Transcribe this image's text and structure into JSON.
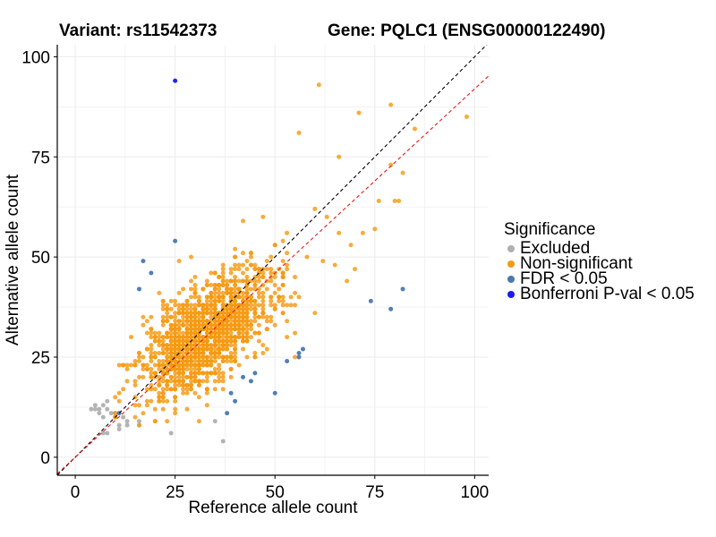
{
  "chart_data": {
    "type": "scatter",
    "title_left": "Variant: rs11542373",
    "title_right": "Gene: PQLC1 (ENSG00000122490)",
    "xlabel": "Reference allele count",
    "ylabel": "Alternative allele count",
    "xlim": [
      -4.5,
      103.5
    ],
    "ylim": [
      -4.5,
      103
    ],
    "x_ticks": [
      0,
      25,
      50,
      75,
      100
    ],
    "y_ticks": [
      0,
      25,
      50,
      75,
      100
    ],
    "grid": true,
    "legend_position": "right",
    "legend_title": "Significance",
    "reference_lines": [
      {
        "name": "identity",
        "color": "#000000",
        "dash": "dashed",
        "slope": 1.0,
        "intercept": 0
      },
      {
        "name": "fit",
        "color": "#e41a1c",
        "dash": "dashed",
        "slope": 0.92,
        "intercept": 0
      }
    ],
    "series": [
      {
        "name": "Excluded",
        "color": "#b0b0b0",
        "points": [
          [
            4,
            12
          ],
          [
            5,
            12
          ],
          [
            5,
            13
          ],
          [
            6,
            12
          ],
          [
            6,
            11
          ],
          [
            7,
            13
          ],
          [
            7,
            10
          ],
          [
            8,
            12
          ],
          [
            8,
            14
          ],
          [
            9,
            11
          ],
          [
            10,
            10
          ],
          [
            10,
            11
          ],
          [
            11,
            8
          ],
          [
            11,
            7
          ],
          [
            7,
            6
          ],
          [
            8,
            6
          ],
          [
            13,
            8
          ],
          [
            13,
            9
          ],
          [
            16,
            8
          ],
          [
            16,
            9
          ],
          [
            24,
            6
          ],
          [
            35,
            9
          ],
          [
            37,
            4
          ],
          [
            12,
            10
          ]
        ]
      },
      {
        "name": "Non-significant",
        "color": "#f59a14",
        "points": []
      },
      {
        "name": "FDR < 0.05",
        "color": "#4a78b0",
        "points": [
          [
            11,
            11
          ],
          [
            16,
            42
          ],
          [
            17,
            49
          ],
          [
            19,
            46
          ],
          [
            25,
            54
          ],
          [
            38,
            11
          ],
          [
            40,
            14
          ],
          [
            39,
            16
          ],
          [
            42,
            20
          ],
          [
            44,
            19
          ],
          [
            45,
            21
          ],
          [
            50,
            16
          ],
          [
            53,
            24
          ],
          [
            56,
            26
          ],
          [
            56,
            25
          ],
          [
            57,
            27
          ],
          [
            74,
            39
          ],
          [
            79,
            37
          ],
          [
            82,
            42
          ]
        ]
      },
      {
        "name": "Bonferroni P-val < 0.05",
        "color": "#1a1aee",
        "points": [
          [
            25,
            94
          ]
        ]
      }
    ],
    "non_significant_summary": {
      "count": 1500,
      "center": [
        33,
        31
      ],
      "sd": [
        8.5,
        8.0
      ],
      "correlation": 0.62,
      "outliers": [
        [
          61,
          93
        ],
        [
          79,
          88
        ],
        [
          98,
          85
        ],
        [
          71,
          86
        ],
        [
          56,
          81
        ],
        [
          66,
          75
        ],
        [
          79,
          73
        ],
        [
          82,
          71
        ],
        [
          76,
          64
        ],
        [
          80,
          64
        ],
        [
          81,
          64
        ],
        [
          85,
          82
        ],
        [
          60,
          62
        ],
        [
          63,
          60
        ],
        [
          66,
          56
        ],
        [
          72,
          56
        ],
        [
          75,
          57
        ],
        [
          69,
          53
        ],
        [
          62,
          49
        ],
        [
          65,
          48
        ],
        [
          68,
          44
        ],
        [
          70,
          47
        ]
      ]
    },
    "seed": 7
  }
}
